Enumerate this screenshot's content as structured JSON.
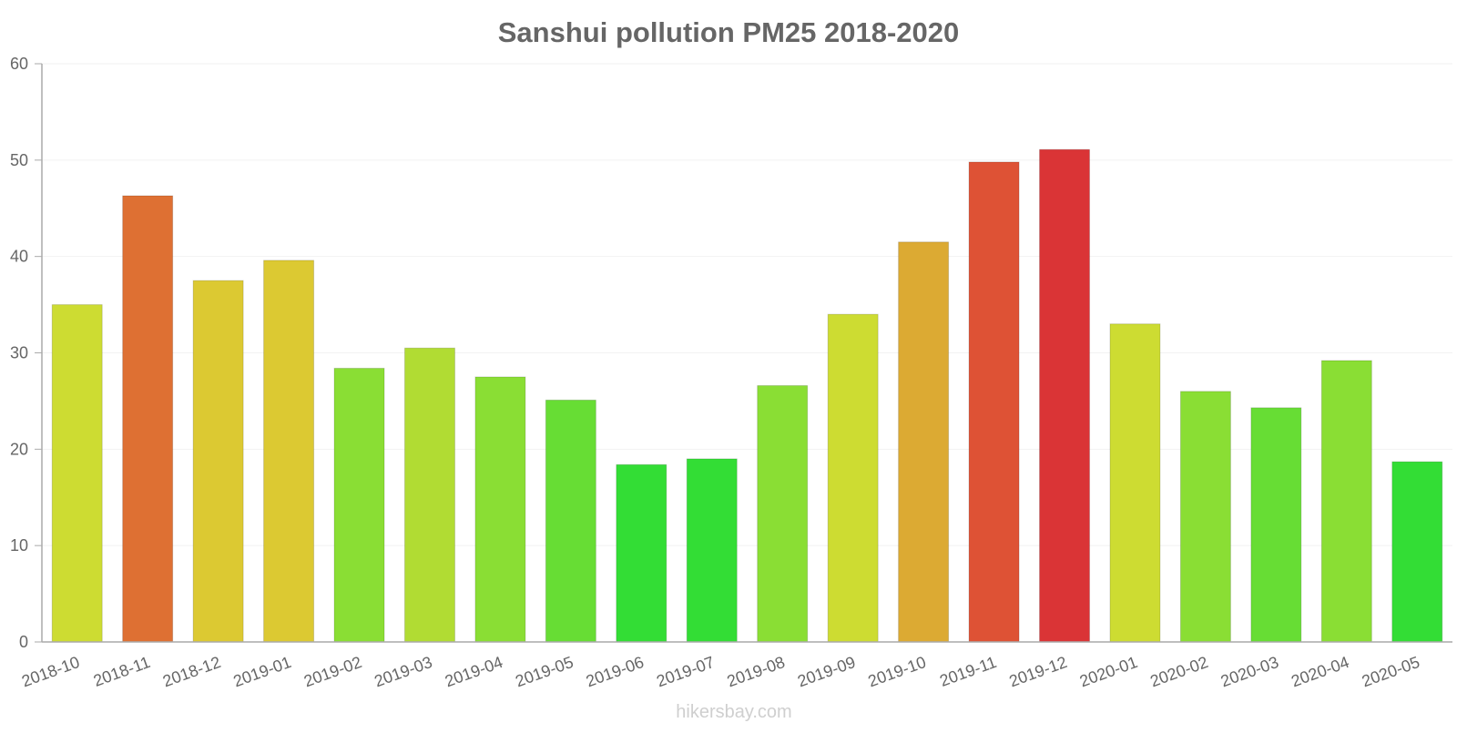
{
  "chart_data": {
    "type": "bar",
    "title": "Sanshui pollution PM25 2018-2020",
    "xlabel": "",
    "ylabel": "",
    "ylim": [
      0,
      60
    ],
    "yticks": [
      0,
      10,
      20,
      30,
      40,
      50,
      60
    ],
    "grid": true,
    "categories": [
      "2018-10",
      "2018-11",
      "2018-12",
      "2019-01",
      "2019-02",
      "2019-03",
      "2019-04",
      "2019-05",
      "2019-06",
      "2019-07",
      "2019-08",
      "2019-09",
      "2019-10",
      "2019-11",
      "2019-12",
      "2020-01",
      "2020-02",
      "2020-03",
      "2020-04",
      "2020-05"
    ],
    "values": [
      35,
      46.3,
      37.5,
      39.6,
      28.4,
      30.5,
      27.5,
      25.1,
      18.4,
      19,
      26.6,
      34,
      41.5,
      49.8,
      51.1,
      33,
      26,
      24.3,
      29.2,
      18.7
    ],
    "colors": [
      "#cddc32",
      "#de7033",
      "#dcc932",
      "#dcc932",
      "#8ade34",
      "#b1dc33",
      "#8ade34",
      "#67dd34",
      "#33dd35",
      "#33dd35",
      "#8ade34",
      "#cddc32",
      "#dcaa33",
      "#de5235",
      "#da3436",
      "#cddc32",
      "#8ade34",
      "#67dd34",
      "#8ade34",
      "#33dd35"
    ]
  },
  "watermark": "hikersbay.com"
}
